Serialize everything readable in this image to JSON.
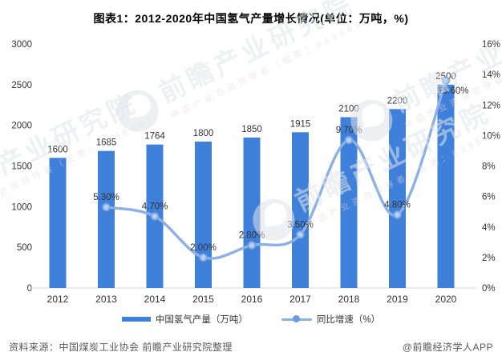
{
  "title": "图表1：2012-2020年中国氢气产量增长情况(单位：万吨，%)",
  "chart_data": {
    "type": "bar",
    "title": "图表1：2012-2020年中国氢气产量增长情况(单位：万吨，%)",
    "categories": [
      "2012",
      "2013",
      "2014",
      "2015",
      "2016",
      "2017",
      "2018",
      "2019",
      "2020"
    ],
    "series": [
      {
        "name": "中国氢气产量（万吨）",
        "type": "bar",
        "axis": "left",
        "color": "#3F80DA",
        "values": [
          1600,
          1685,
          1764,
          1800,
          1850,
          1915,
          2100,
          2200,
          2500
        ],
        "labels": [
          "1600",
          "1685",
          "1764",
          "1800",
          "1850",
          "1915",
          "2100",
          "2200",
          "2500"
        ]
      },
      {
        "name": "同比增速（%）",
        "type": "line",
        "axis": "right",
        "color": "#8AB0E5",
        "values": [
          null,
          5.3,
          4.7,
          2.0,
          2.8,
          3.5,
          9.7,
          4.8,
          13.6
        ],
        "labels": [
          null,
          "5.30%",
          "4.70%",
          "2.00%",
          "2.80%",
          "3.50%",
          "9.70%",
          "4.80%",
          "13.60%"
        ]
      }
    ],
    "left_axis": {
      "min": 0,
      "max": 3000,
      "step": 500,
      "ticks": [
        "0",
        "500",
        "1000",
        "1500",
        "2000",
        "2500",
        "3000"
      ]
    },
    "right_axis": {
      "min": 0,
      "max": 16,
      "step": 2,
      "ticks": [
        "0%",
        "2%",
        "4%",
        "6%",
        "8%",
        "10%",
        "12%",
        "14%",
        "16%"
      ]
    },
    "grid": false,
    "legend_position": "bottom",
    "label_color": "#333333",
    "axis_line_color": "#d9d9d9",
    "marker_fill": "#b8cfee",
    "marker_stroke": "#7ea8e1"
  },
  "legend": {
    "bar_label": "中国氢气产量（万吨）",
    "line_label": "同比增速（%）"
  },
  "footer": {
    "source": "资料来源：中国煤炭工业协会 前瞻产业研究院整理",
    "credit": "@前瞻经济学人APP"
  },
  "watermark": {
    "main": "前瞻产业研究院",
    "sub": "中国产业咨询领导者（股票：839599）"
  }
}
